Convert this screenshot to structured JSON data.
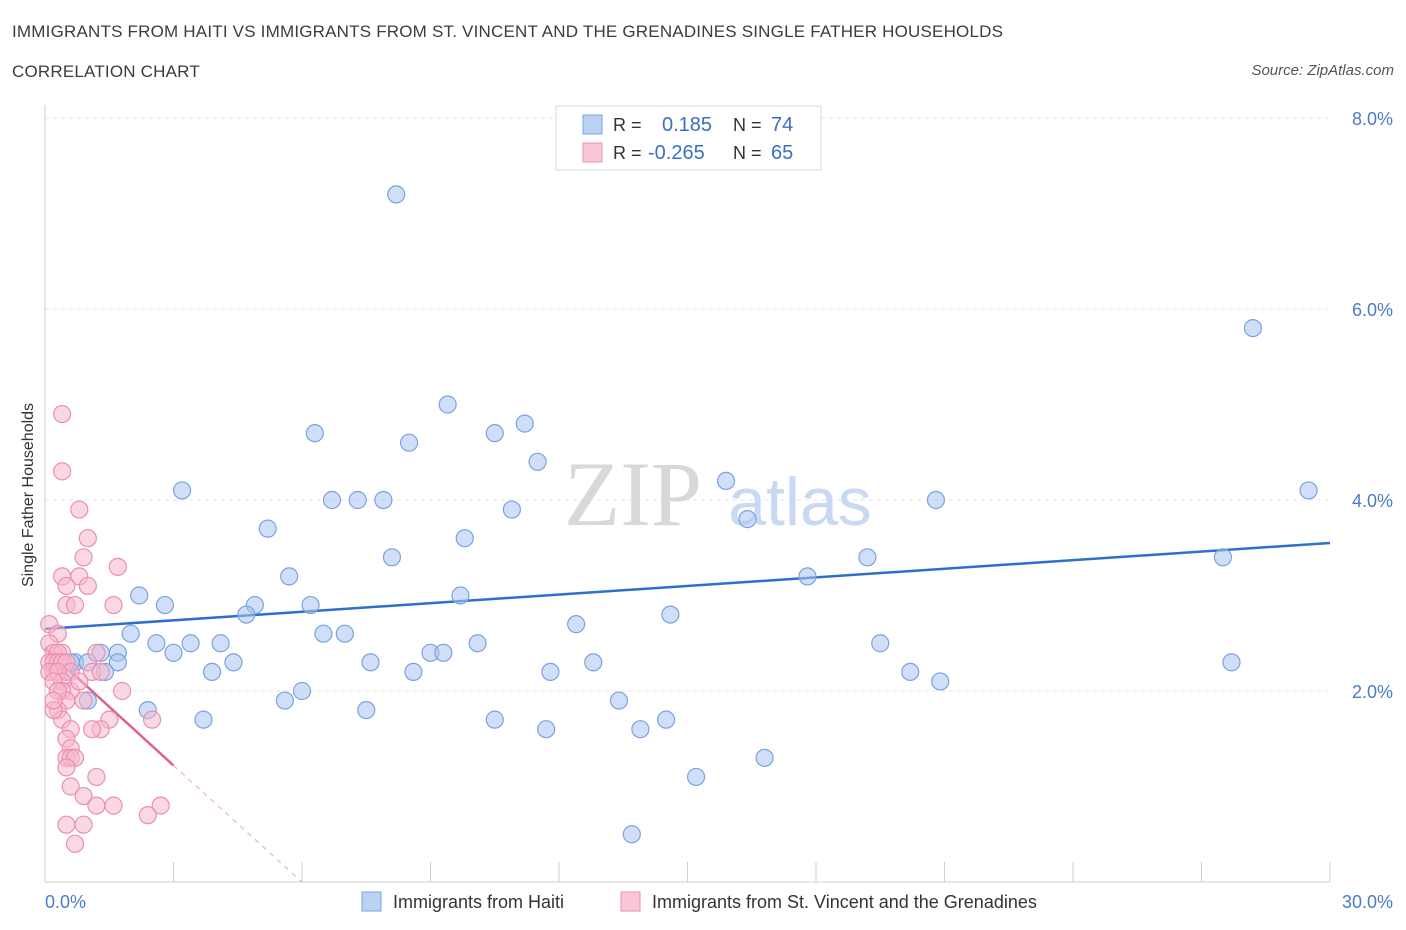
{
  "header": {
    "title": "IMMIGRANTS FROM HAITI VS IMMIGRANTS FROM ST. VINCENT AND THE GRENADINES SINGLE FATHER HOUSEHOLDS",
    "subtitle": "CORRELATION CHART",
    "source": "Source: ZipAtlas.com"
  },
  "watermark": {
    "zip": "ZIP",
    "atlas": "atlas"
  },
  "legend": {
    "r_label": "R =",
    "n_label": "N =",
    "series1": {
      "r": "0.185",
      "n": "74"
    },
    "series2": {
      "r": "-0.265",
      "n": "65"
    }
  },
  "bottom_legend": {
    "series1": "Immigrants from Haiti",
    "series2": "Immigrants from St. Vincent and the Grenadines"
  },
  "colors": {
    "blue_fill": "#a9c5f0",
    "blue_stroke": "#7aa3e0",
    "blue_line": "#2f6fcc",
    "pink_fill": "#f5b8cc",
    "pink_stroke": "#eb8fae",
    "pink_line": "#e0608f"
  },
  "chart_data": {
    "type": "scatter",
    "ylabel": "Single Father Households",
    "xlim": [
      0,
      30
    ],
    "ylim": [
      0,
      8
    ],
    "x_tick_labels": [
      "0.0%",
      "30.0%"
    ],
    "y_ticks": [
      2,
      4,
      6,
      8
    ],
    "y_tick_labels": [
      "2.0%",
      "4.0%",
      "6.0%",
      "8.0%"
    ],
    "legend_position": "top-center",
    "grid": true,
    "series": [
      {
        "name": "Immigrants from Haiti",
        "points": [
          [
            8.2,
            7.2
          ],
          [
            28.2,
            5.8
          ],
          [
            9.4,
            5.0
          ],
          [
            10.5,
            4.7
          ],
          [
            6.3,
            4.7
          ],
          [
            11.2,
            4.8
          ],
          [
            8.5,
            4.6
          ],
          [
            11.5,
            4.4
          ],
          [
            3.2,
            4.1
          ],
          [
            6.7,
            4.0
          ],
          [
            7.3,
            4.0
          ],
          [
            7.9,
            4.0
          ],
          [
            15.9,
            4.2
          ],
          [
            20.8,
            4.0
          ],
          [
            29.5,
            4.1
          ],
          [
            10.9,
            3.9
          ],
          [
            16.4,
            3.8
          ],
          [
            5.2,
            3.7
          ],
          [
            9.8,
            3.6
          ],
          [
            8.1,
            3.4
          ],
          [
            19.2,
            3.4
          ],
          [
            27.5,
            3.4
          ],
          [
            17.8,
            3.2
          ],
          [
            5.7,
            3.2
          ],
          [
            2.2,
            3.0
          ],
          [
            2.8,
            2.9
          ],
          [
            4.9,
            2.9
          ],
          [
            6.2,
            2.9
          ],
          [
            9.7,
            3.0
          ],
          [
            4.7,
            2.8
          ],
          [
            14.6,
            2.8
          ],
          [
            12.4,
            2.7
          ],
          [
            6.5,
            2.6
          ],
          [
            7.0,
            2.6
          ],
          [
            2.0,
            2.6
          ],
          [
            3.4,
            2.5
          ],
          [
            2.6,
            2.5
          ],
          [
            1.7,
            2.4
          ],
          [
            4.1,
            2.5
          ],
          [
            3.0,
            2.4
          ],
          [
            1.3,
            2.4
          ],
          [
            10.1,
            2.5
          ],
          [
            9.0,
            2.4
          ],
          [
            9.3,
            2.4
          ],
          [
            7.6,
            2.3
          ],
          [
            4.4,
            2.3
          ],
          [
            1.7,
            2.3
          ],
          [
            19.5,
            2.5
          ],
          [
            12.8,
            2.3
          ],
          [
            0.7,
            2.3
          ],
          [
            1.4,
            2.2
          ],
          [
            0.5,
            2.2
          ],
          [
            3.9,
            2.2
          ],
          [
            8.6,
            2.2
          ],
          [
            11.8,
            2.2
          ],
          [
            20.2,
            2.2
          ],
          [
            20.9,
            2.1
          ],
          [
            27.7,
            2.3
          ],
          [
            5.6,
            1.9
          ],
          [
            6.0,
            2.0
          ],
          [
            13.4,
            1.9
          ],
          [
            1.0,
            1.9
          ],
          [
            2.4,
            1.8
          ],
          [
            7.5,
            1.8
          ],
          [
            3.7,
            1.7
          ],
          [
            10.5,
            1.7
          ],
          [
            11.7,
            1.6
          ],
          [
            13.9,
            1.6
          ],
          [
            14.5,
            1.7
          ],
          [
            15.2,
            1.1
          ],
          [
            16.8,
            1.3
          ],
          [
            13.7,
            0.5
          ],
          [
            0.6,
            2.3
          ],
          [
            1.0,
            2.3
          ]
        ]
      },
      {
        "name": "Immigrants from St. Vincent and the Grenadines",
        "points": [
          [
            0.4,
            4.9
          ],
          [
            0.4,
            4.3
          ],
          [
            0.8,
            3.9
          ],
          [
            1.0,
            3.6
          ],
          [
            0.9,
            3.4
          ],
          [
            1.7,
            3.3
          ],
          [
            0.4,
            3.2
          ],
          [
            0.8,
            3.2
          ],
          [
            0.5,
            3.1
          ],
          [
            1.0,
            3.1
          ],
          [
            0.5,
            2.9
          ],
          [
            0.7,
            2.9
          ],
          [
            1.6,
            2.9
          ],
          [
            0.1,
            2.7
          ],
          [
            0.3,
            2.6
          ],
          [
            0.1,
            2.5
          ],
          [
            0.2,
            2.4
          ],
          [
            0.4,
            2.4
          ],
          [
            0.3,
            2.4
          ],
          [
            1.2,
            2.4
          ],
          [
            0.1,
            2.3
          ],
          [
            0.2,
            2.3
          ],
          [
            0.3,
            2.3
          ],
          [
            0.4,
            2.3
          ],
          [
            0.5,
            2.3
          ],
          [
            0.6,
            2.2
          ],
          [
            0.2,
            2.2
          ],
          [
            0.1,
            2.2
          ],
          [
            0.3,
            2.2
          ],
          [
            1.1,
            2.2
          ],
          [
            0.4,
            2.1
          ],
          [
            1.3,
            2.2
          ],
          [
            0.2,
            2.1
          ],
          [
            0.6,
            2.0
          ],
          [
            0.4,
            2.0
          ],
          [
            1.8,
            2.0
          ],
          [
            0.5,
            1.9
          ],
          [
            0.9,
            1.9
          ],
          [
            0.3,
            1.8
          ],
          [
            0.4,
            1.7
          ],
          [
            0.2,
            1.8
          ],
          [
            1.5,
            1.7
          ],
          [
            0.6,
            1.6
          ],
          [
            1.3,
            1.6
          ],
          [
            2.5,
            1.7
          ],
          [
            0.5,
            1.5
          ],
          [
            1.1,
            1.6
          ],
          [
            0.6,
            1.4
          ],
          [
            0.5,
            1.3
          ],
          [
            0.6,
            1.3
          ],
          [
            0.7,
            1.3
          ],
          [
            0.5,
            1.2
          ],
          [
            1.2,
            1.1
          ],
          [
            0.6,
            1.0
          ],
          [
            0.9,
            0.9
          ],
          [
            1.2,
            0.8
          ],
          [
            1.6,
            0.8
          ],
          [
            2.7,
            0.8
          ],
          [
            2.4,
            0.7
          ],
          [
            0.5,
            0.6
          ],
          [
            0.9,
            0.6
          ],
          [
            0.7,
            0.4
          ],
          [
            0.3,
            2.0
          ],
          [
            0.2,
            1.9
          ],
          [
            0.8,
            2.1
          ]
        ]
      }
    ],
    "trend_lines": [
      {
        "series": "Immigrants from Haiti",
        "x": [
          0,
          30
        ],
        "y": [
          2.65,
          3.55
        ]
      },
      {
        "series": "Immigrants from St. Vincent and the Grenadines",
        "x": [
          0,
          3.0
        ],
        "y": [
          2.45,
          1.22
        ],
        "dashed_extension": {
          "x": [
            3.0,
            6.0
          ],
          "y": [
            1.22,
            0.0
          ]
        }
      }
    ]
  }
}
